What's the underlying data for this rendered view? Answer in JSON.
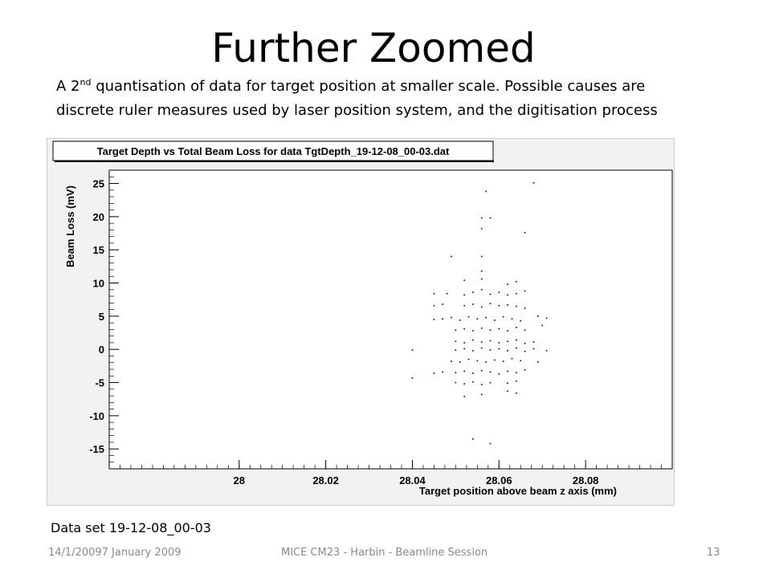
{
  "slide": {
    "title": "Further Zoomed",
    "description_pre": "A 2",
    "description_sup": "nd",
    "description_line1_rest": " quantisation of data for target position at smaller scale.  Possible causes are",
    "description_line2": "discrete ruler measures used by laser position system, and  the digitisation process",
    "dataset_label": "Data set 19-12-08_00-03",
    "footer_date": "14/1/20097 January 2009",
    "footer_session": "MICE CM23 - Harbin - Beamline Session",
    "footer_page": "13",
    "colors": {
      "plot_frame_bg": "#f2f2f2",
      "plot_area_bg": "#ffffff",
      "marker": "#000000",
      "footer_text": "#8a8a8a"
    }
  },
  "chart_data": {
    "type": "scatter",
    "title": "Target Depth vs Total Beam Loss for data TgtDepth_19-12-08_00-03.dat",
    "xlabel": "Target position above beam z axis (mm)",
    "ylabel": "Beam Loss (mV)",
    "xlim": [
      27.97,
      28.1
    ],
    "ylim": [
      -18,
      27
    ],
    "x_ticks": [
      28,
      28.02,
      28.04,
      28.06,
      28.08
    ],
    "x_tick_labels": [
      "28",
      "28.02",
      "28.04",
      "28.06",
      "28.08"
    ],
    "y_ticks": [
      -15,
      -10,
      -5,
      0,
      5,
      10,
      15,
      20,
      25
    ],
    "y_tick_labels": [
      "-15",
      "-10",
      "-5",
      "0",
      "5",
      "10",
      "15",
      "20",
      "25"
    ],
    "grid": false,
    "points": [
      [
        28.057,
        23.8
      ],
      [
        28.068,
        25.1
      ],
      [
        28.056,
        19.8
      ],
      [
        28.058,
        19.8
      ],
      [
        28.056,
        18.2
      ],
      [
        28.066,
        17.6
      ],
      [
        28.049,
        14.0
      ],
      [
        28.056,
        14.0
      ],
      [
        28.056,
        11.8
      ],
      [
        28.052,
        10.4
      ],
      [
        28.056,
        10.6
      ],
      [
        28.056,
        9.0
      ],
      [
        28.062,
        9.8
      ],
      [
        28.064,
        10.2
      ],
      [
        28.048,
        8.4
      ],
      [
        28.052,
        8.2
      ],
      [
        28.054,
        8.6
      ],
      [
        28.058,
        8.3
      ],
      [
        28.06,
        8.6
      ],
      [
        28.062,
        8.2
      ],
      [
        28.064,
        8.4
      ],
      [
        28.066,
        8.8
      ],
      [
        28.045,
        8.4
      ],
      [
        28.045,
        6.6
      ],
      [
        28.047,
        6.8
      ],
      [
        28.052,
        6.6
      ],
      [
        28.054,
        6.8
      ],
      [
        28.056,
        6.4
      ],
      [
        28.058,
        6.9
      ],
      [
        28.06,
        6.6
      ],
      [
        28.062,
        6.7
      ],
      [
        28.064,
        6.5
      ],
      [
        28.066,
        6.2
      ],
      [
        28.045,
        4.5
      ],
      [
        28.047,
        4.6
      ],
      [
        28.049,
        4.8
      ],
      [
        28.051,
        4.4
      ],
      [
        28.053,
        4.9
      ],
      [
        28.055,
        4.6
      ],
      [
        28.057,
        4.8
      ],
      [
        28.059,
        4.4
      ],
      [
        28.061,
        4.9
      ],
      [
        28.063,
        4.6
      ],
      [
        28.065,
        4.3
      ],
      [
        28.069,
        5.0
      ],
      [
        28.071,
        4.7
      ],
      [
        28.05,
        2.9
      ],
      [
        28.052,
        3.1
      ],
      [
        28.054,
        2.8
      ],
      [
        28.056,
        3.2
      ],
      [
        28.058,
        2.9
      ],
      [
        28.06,
        3.1
      ],
      [
        28.062,
        2.8
      ],
      [
        28.064,
        3.3
      ],
      [
        28.066,
        2.9
      ],
      [
        28.07,
        3.6
      ],
      [
        28.05,
        1.2
      ],
      [
        28.052,
        1.0
      ],
      [
        28.054,
        1.4
      ],
      [
        28.056,
        1.1
      ],
      [
        28.058,
        1.3
      ],
      [
        28.06,
        1.0
      ],
      [
        28.062,
        1.2
      ],
      [
        28.064,
        1.4
      ],
      [
        28.066,
        0.9
      ],
      [
        28.068,
        1.1
      ],
      [
        28.05,
        -0.1
      ],
      [
        28.052,
        0.1
      ],
      [
        28.054,
        -0.2
      ],
      [
        28.056,
        0.2
      ],
      [
        28.058,
        -0.1
      ],
      [
        28.06,
        0.1
      ],
      [
        28.062,
        -0.2
      ],
      [
        28.064,
        0.2
      ],
      [
        28.066,
        -0.3
      ],
      [
        28.068,
        0.1
      ],
      [
        28.071,
        -0.2
      ],
      [
        28.04,
        -0.1
      ],
      [
        28.049,
        -1.8
      ],
      [
        28.051,
        -1.9
      ],
      [
        28.053,
        -1.5
      ],
      [
        28.055,
        -1.7
      ],
      [
        28.057,
        -1.9
      ],
      [
        28.059,
        -1.6
      ],
      [
        28.061,
        -1.8
      ],
      [
        28.063,
        -1.4
      ],
      [
        28.065,
        -1.7
      ],
      [
        28.069,
        -1.9
      ],
      [
        28.045,
        -3.6
      ],
      [
        28.047,
        -3.4
      ],
      [
        28.05,
        -3.5
      ],
      [
        28.052,
        -3.3
      ],
      [
        28.054,
        -3.6
      ],
      [
        28.056,
        -3.2
      ],
      [
        28.058,
        -3.4
      ],
      [
        28.06,
        -3.7
      ],
      [
        28.062,
        -3.3
      ],
      [
        28.064,
        -3.5
      ],
      [
        28.066,
        -3.1
      ],
      [
        28.04,
        -4.3
      ],
      [
        28.05,
        -5.0
      ],
      [
        28.052,
        -5.2
      ],
      [
        28.054,
        -4.9
      ],
      [
        28.056,
        -5.3
      ],
      [
        28.058,
        -5.0
      ],
      [
        28.062,
        -5.1
      ],
      [
        28.064,
        -4.8
      ],
      [
        28.052,
        -7.1
      ],
      [
        28.056,
        -6.8
      ],
      [
        28.062,
        -6.3
      ],
      [
        28.064,
        -6.6
      ],
      [
        28.054,
        -13.5
      ],
      [
        28.058,
        -14.2
      ]
    ]
  }
}
